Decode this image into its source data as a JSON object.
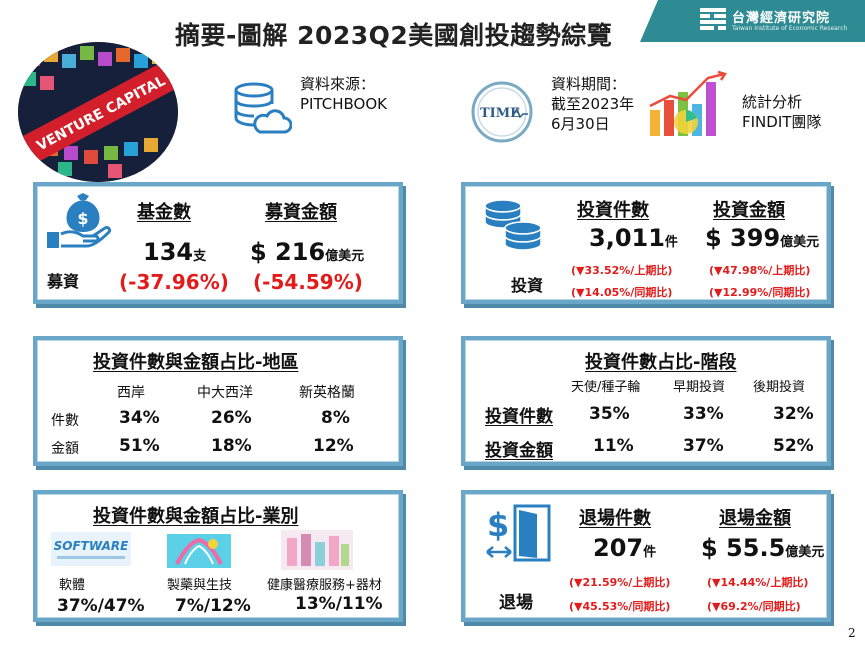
{
  "title": "摘要-圖解 2023Q2美國創投趨勢綜覽",
  "logo": {
    "zh": "台灣經濟研究院",
    "en": "Taiwan Institute of Economic Research"
  },
  "hero_text": "VENTURE CAPITAL",
  "source": {
    "label": "資料來源：",
    "value": "PITCHBOOK"
  },
  "period": {
    "label": "資料期間：",
    "line2": "截至2023年",
    "line3": "6月30日",
    "icon_text": "TIME"
  },
  "analysis": {
    "line1": "統計分析",
    "line2": "FINDIT團隊"
  },
  "fundraising": {
    "section": "募資",
    "col1_header": "基金數",
    "col2_header": "募資金額",
    "funds_value": "134",
    "funds_unit": "支",
    "funds_change": "(-37.96%)",
    "amount_value": "$ 216",
    "amount_unit": "億美元",
    "amount_change": "(-54.59%)"
  },
  "investment": {
    "section": "投資",
    "col1_header": "投資件數",
    "col2_header": "投資金額",
    "deals_value": "3,011",
    "deals_unit": "件",
    "deals_qoq": "(▼33.52%/上期比)",
    "deals_yoy": "(▼14.05%/同期比)",
    "amount_value": "$ 399",
    "amount_unit": "億美元",
    "amount_qoq": "(▼47.98%/上期比)",
    "amount_yoy": "(▼12.99%/同期比)"
  },
  "region": {
    "heading": "投資件數與金額占比-地區",
    "columns": [
      "西岸",
      "中大西洋",
      "新英格蘭"
    ],
    "row1_label": "件數",
    "row1_values": [
      "34%",
      "26%",
      "8%"
    ],
    "row2_label": "金額",
    "row2_values": [
      "51%",
      "18%",
      "12%"
    ]
  },
  "stage": {
    "heading": "投資件數占比-階段",
    "columns": [
      "天使/種子輪",
      "早期投資",
      "後期投資"
    ],
    "row1_label": "投資件數",
    "row1_values": [
      "35%",
      "33%",
      "32%"
    ],
    "row2_label": "投資金額",
    "row2_values": [
      "11%",
      "37%",
      "52%"
    ]
  },
  "industry": {
    "heading": "投資件數與金額占比-業別",
    "items": [
      {
        "label": "軟體",
        "value": "37%/47%",
        "thumb": "SOFTWARE"
      },
      {
        "label": "製藥與生技",
        "value": "7%/12%"
      },
      {
        "label": "健康醫療服務+器材",
        "value": "13%/11%"
      }
    ]
  },
  "exits": {
    "section": "退場",
    "col1_header": "退場件數",
    "col2_header": "退場金額",
    "count_value": "207",
    "count_unit": "件",
    "count_qoq": "(▼21.59%/上期比)",
    "count_yoy": "(▼45.53%/同期比)",
    "amount_value": "$ 55.5",
    "amount_unit": "億美元",
    "amount_qoq": "(▼14.44%/上期比)",
    "amount_yoy": "(▼69.2%/同期比)"
  },
  "page_number": "2",
  "colors": {
    "accent": "#2e8b93",
    "card_border": "#6aa6c7",
    "negative": "#e21b1b",
    "icon_blue": "#2a7fc1"
  }
}
